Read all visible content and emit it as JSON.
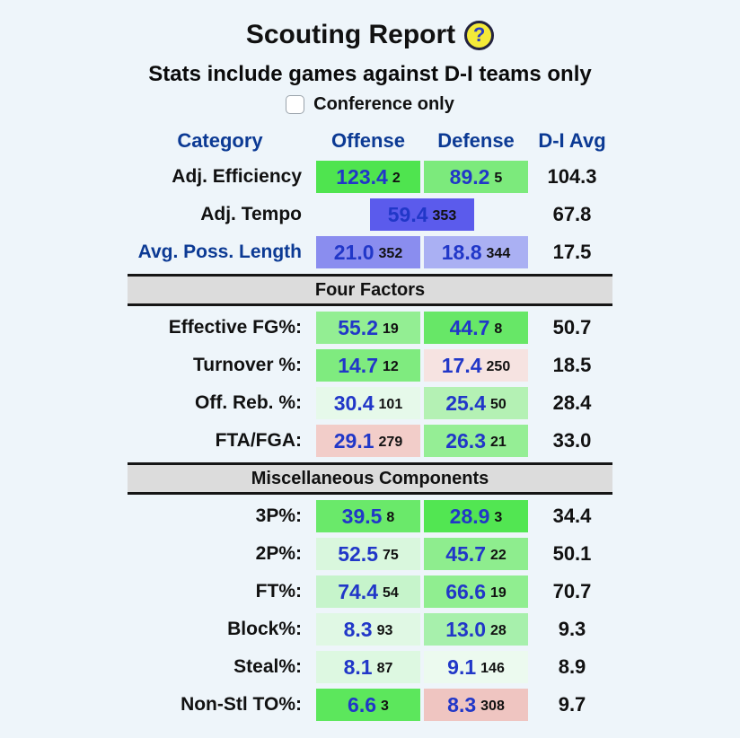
{
  "page": {
    "title": "Scouting Report",
    "help_icon_glyph": "?",
    "subtitle": "Stats include games against D-I teams only",
    "checkbox_label": "Conference only",
    "checkbox_checked": false,
    "colors": {
      "background": "#eef5fa",
      "header_text": "#0c3a94",
      "value_text": "#2137c8",
      "section_bg": "#dcdcdc"
    }
  },
  "table": {
    "headers": {
      "category": "Category",
      "offense": "Offense",
      "defense": "Defense",
      "avg": "D-I Avg"
    },
    "rows": [
      {
        "type": "stat",
        "label": "Adj. Efficiency",
        "label_link": false,
        "offense": {
          "value": "123.4",
          "rank": "2",
          "bg": "#4fe44f"
        },
        "defense": {
          "value": "89.2",
          "rank": "5",
          "bg": "#7cea7c"
        },
        "avg": "104.3"
      },
      {
        "type": "tempo",
        "label": "Adj. Tempo",
        "label_link": false,
        "combined": {
          "value": "59.4",
          "rank": "353",
          "bg": "#5b5bec"
        },
        "avg": "67.8"
      },
      {
        "type": "stat",
        "label": "Avg. Poss. Length",
        "label_link": true,
        "offense": {
          "value": "21.0",
          "rank": "352",
          "bg": "#8a8def"
        },
        "defense": {
          "value": "18.8",
          "rank": "344",
          "bg": "#aab0f3"
        },
        "avg": "17.5"
      },
      {
        "type": "section",
        "label": "Four Factors"
      },
      {
        "type": "stat",
        "label": "Effective FG%:",
        "label_link": false,
        "offense": {
          "value": "55.2",
          "rank": "19",
          "bg": "#93ee93"
        },
        "defense": {
          "value": "44.7",
          "rank": "8",
          "bg": "#67e767"
        },
        "avg": "50.7"
      },
      {
        "type": "stat",
        "label": "Turnover %:",
        "label_link": false,
        "offense": {
          "value": "14.7",
          "rank": "12",
          "bg": "#7feb7f"
        },
        "defense": {
          "value": "17.4",
          "rank": "250",
          "bg": "#f6e3e1"
        },
        "avg": "18.5"
      },
      {
        "type": "stat",
        "label": "Off. Reb. %:",
        "label_link": false,
        "offense": {
          "value": "30.4",
          "rank": "101",
          "bg": "#e6f9ea"
        },
        "defense": {
          "value": "25.4",
          "rank": "50",
          "bg": "#b4f1b4"
        },
        "avg": "28.4"
      },
      {
        "type": "stat",
        "label": "FTA/FGA:",
        "label_link": false,
        "offense": {
          "value": "29.1",
          "rank": "279",
          "bg": "#f2cdc9"
        },
        "defense": {
          "value": "26.3",
          "rank": "21",
          "bg": "#95ee95"
        },
        "avg": "33.0"
      },
      {
        "type": "section",
        "label": "Miscellaneous Components"
      },
      {
        "type": "stat",
        "label": "3P%:",
        "label_link": false,
        "offense": {
          "value": "39.5",
          "rank": "8",
          "bg": "#6ae96a"
        },
        "defense": {
          "value": "28.9",
          "rank": "3",
          "bg": "#52e652"
        },
        "avg": "34.4"
      },
      {
        "type": "stat",
        "label": "2P%:",
        "label_link": false,
        "offense": {
          "value": "52.5",
          "rank": "75",
          "bg": "#d9f7dd"
        },
        "defense": {
          "value": "45.7",
          "rank": "22",
          "bg": "#8eed8e"
        },
        "avg": "50.1"
      },
      {
        "type": "stat",
        "label": "FT%:",
        "label_link": false,
        "offense": {
          "value": "74.4",
          "rank": "54",
          "bg": "#c6f4cb"
        },
        "defense": {
          "value": "66.6",
          "rank": "19",
          "bg": "#90ee90"
        },
        "avg": "70.7"
      },
      {
        "type": "stat",
        "label": "Block%:",
        "label_link": false,
        "offense": {
          "value": "8.3",
          "rank": "93",
          "bg": "#e0f8e4"
        },
        "defense": {
          "value": "13.0",
          "rank": "28",
          "bg": "#a7f0ac"
        },
        "avg": "9.3"
      },
      {
        "type": "stat",
        "label": "Steal%:",
        "label_link": false,
        "offense": {
          "value": "8.1",
          "rank": "87",
          "bg": "#ddf8e1"
        },
        "defense": {
          "value": "9.1",
          "rank": "146",
          "bg": "#ecfaef"
        },
        "avg": "8.9"
      },
      {
        "type": "stat",
        "label": "Non-Stl TO%:",
        "label_link": false,
        "offense": {
          "value": "6.6",
          "rank": "3",
          "bg": "#5ce75c"
        },
        "defense": {
          "value": "8.3",
          "rank": "308",
          "bg": "#efc5c1"
        },
        "avg": "9.7"
      }
    ]
  }
}
